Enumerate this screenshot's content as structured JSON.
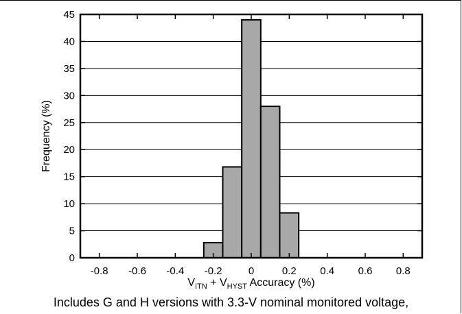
{
  "chart_data": {
    "type": "bar",
    "bins": [
      {
        "from": -0.25,
        "to": -0.15,
        "value": 2.8
      },
      {
        "from": -0.15,
        "to": -0.05,
        "value": 16.8
      },
      {
        "from": -0.05,
        "to": 0.05,
        "value": 44.0
      },
      {
        "from": 0.05,
        "to": 0.15,
        "value": 28.0
      },
      {
        "from": 0.15,
        "to": 0.25,
        "value": 8.3
      }
    ],
    "xlim": [
      -0.9,
      0.9
    ],
    "ylim": [
      0,
      45
    ],
    "xticks": [
      "-0.8",
      "-0.6",
      "-0.4",
      "-0.2",
      "0",
      "0.2",
      "0.4",
      "0.6",
      "0.8"
    ],
    "xtick_values": [
      -0.8,
      -0.6,
      -0.4,
      -0.2,
      0,
      0.2,
      0.4,
      0.6,
      0.8
    ],
    "yticks": [
      "0",
      "5",
      "10",
      "15",
      "20",
      "25",
      "30",
      "35",
      "40",
      "45"
    ],
    "ytick_values": [
      0,
      5,
      10,
      15,
      20,
      25,
      30,
      35,
      40,
      45
    ],
    "ylabel": "Frequency (%)",
    "xlabel": {
      "v1": "V",
      "sub1": "ITN",
      "plus": " + V",
      "sub2": "HYST",
      "rest": " Accuracy (%)"
    },
    "grid": "horizontal",
    "bar_color": "#a8a8a8",
    "caption": "Includes G and H versions with 3.3-V nominal monitored voltage,"
  }
}
